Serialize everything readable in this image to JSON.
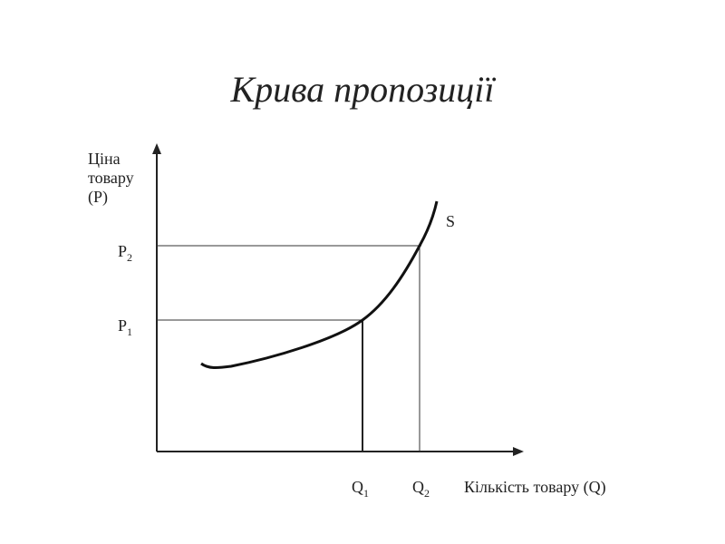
{
  "title": "Крива пропозиції",
  "y_axis_label": [
    "Ціна",
    "товару",
    "(P)"
  ],
  "x_axis_label": "Кількість товару (Q)",
  "curve_label": "S",
  "price_levels": [
    {
      "symbol": "P",
      "subscript": "1"
    },
    {
      "symbol": "P",
      "subscript": "2"
    }
  ],
  "quantity_levels": [
    {
      "symbol": "Q",
      "subscript": "1"
    },
    {
      "symbol": "Q",
      "subscript": "2"
    }
  ]
}
